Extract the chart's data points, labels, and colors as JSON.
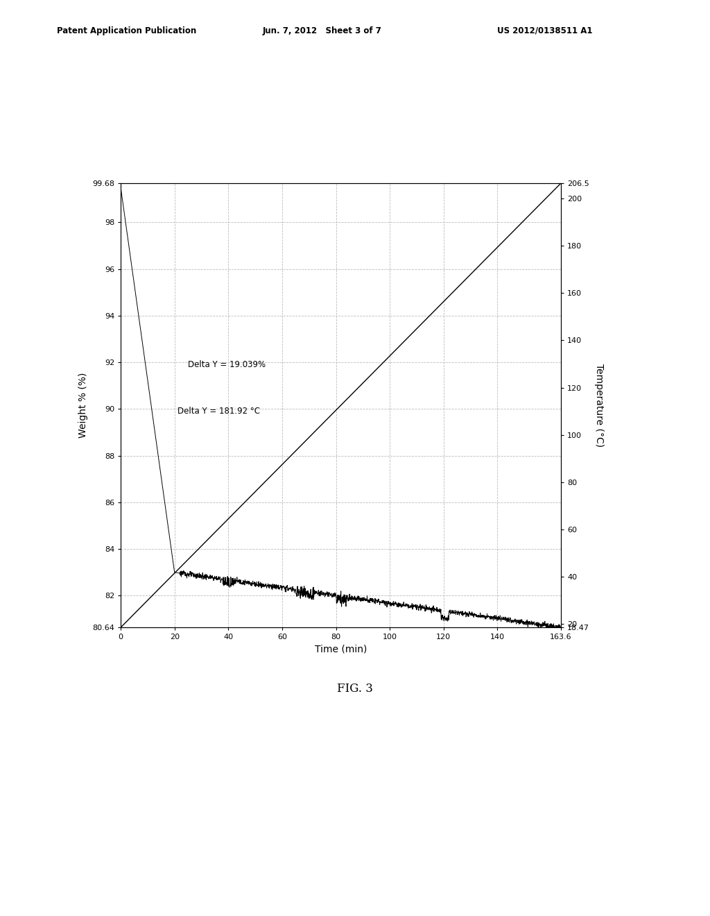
{
  "header_left": "Patent Application Publication",
  "header_center": "Jun. 7, 2012   Sheet 3 of 7",
  "header_right": "US 2012/0138511 A1",
  "fig_label": "FIG. 3",
  "xlabel": "Time (min)",
  "ylabel_left": "Weight % (%)",
  "ylabel_right": "Temperature (°C)",
  "xlim": [
    0,
    163.6
  ],
  "ylim_left": [
    80.64,
    99.68
  ],
  "ylim_right": [
    18.47,
    206.5
  ],
  "xticks": [
    0,
    20,
    40,
    60,
    80,
    100,
    120,
    140,
    163.6
  ],
  "xtick_labels": [
    "0",
    "20",
    "40",
    "60",
    "80",
    "100",
    "120",
    "140",
    "163.6"
  ],
  "yticks_left": [
    80.64,
    82,
    84,
    86,
    88,
    90,
    92,
    94,
    96,
    98,
    99.68
  ],
  "ytick_labels_left": [
    "80.64",
    "82",
    "84",
    "86",
    "88",
    "90",
    "92",
    "94",
    "96",
    "98",
    "99.68"
  ],
  "yticks_right": [
    18.47,
    20,
    40,
    60,
    80,
    100,
    120,
    140,
    160,
    180,
    200,
    206.5
  ],
  "ytick_labels_right": [
    "18.47",
    "20",
    "40",
    "60",
    "80",
    "100",
    "120",
    "140",
    "160",
    "180",
    "200",
    "206.5"
  ],
  "annotation1": "Delta Y = 19.039%",
  "annotation2": "Delta Y = 181.92 °C",
  "background_color": "#ffffff",
  "line_color": "#000000",
  "grid_color": "#aaaaaa"
}
